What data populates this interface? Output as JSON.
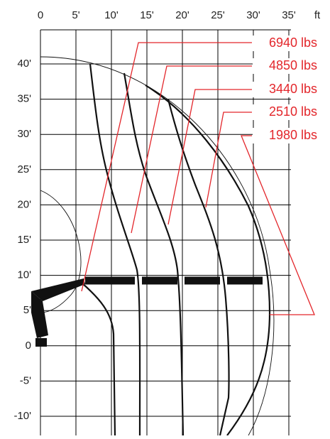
{
  "x_axis": {
    "labels": [
      "0",
      "5'",
      "10'",
      "15'",
      "20'",
      "25'",
      "30'",
      "35'"
    ],
    "unit": "ft"
  },
  "y_axis": {
    "labels": [
      "40'",
      "35'",
      "30'",
      "25'",
      "20'",
      "15'",
      "10'",
      "5'",
      "0",
      "-5'",
      "-10'"
    ]
  },
  "loads": [
    "6940 lbs",
    "4850 lbs",
    "3440 lbs",
    "2510 lbs",
    "1980 lbs"
  ]
}
